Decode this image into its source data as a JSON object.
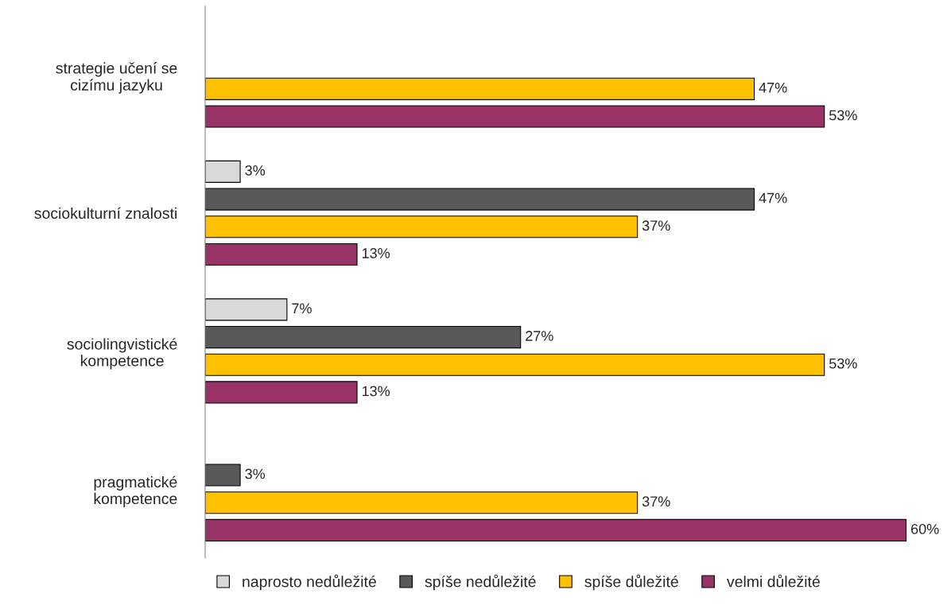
{
  "chart_data": {
    "type": "bar",
    "orientation": "horizontal",
    "categories": [
      "strategie učení se\ncizímu jazyku",
      "sociokulturní znalosti",
      "sociolingvistické\nkompetence",
      "pragmatické\nkompetence"
    ],
    "series": [
      {
        "name": "naprosto nedůležité",
        "color": "#d9d9d9",
        "values": [
          null,
          3,
          7,
          null
        ],
        "value_labels": [
          null,
          "3%",
          "7%",
          null
        ]
      },
      {
        "name": "spíše nedůležité",
        "color": "#595959",
        "values": [
          null,
          47,
          27,
          3
        ],
        "value_labels": [
          null,
          "47%",
          "27%",
          "3%"
        ]
      },
      {
        "name": "spíše důležité",
        "color": "#ffc000",
        "values": [
          47,
          37,
          53,
          37
        ],
        "value_labels": [
          "47%",
          "37%",
          "53%",
          "37%"
        ]
      },
      {
        "name": "velmi důležité",
        "color": "#993366",
        "values": [
          53,
          13,
          13,
          60
        ],
        "value_labels": [
          "53%",
          "13%",
          "13%",
          "60%"
        ]
      }
    ],
    "tick_labels": "y",
    "grid": false,
    "legend": "bottom"
  }
}
